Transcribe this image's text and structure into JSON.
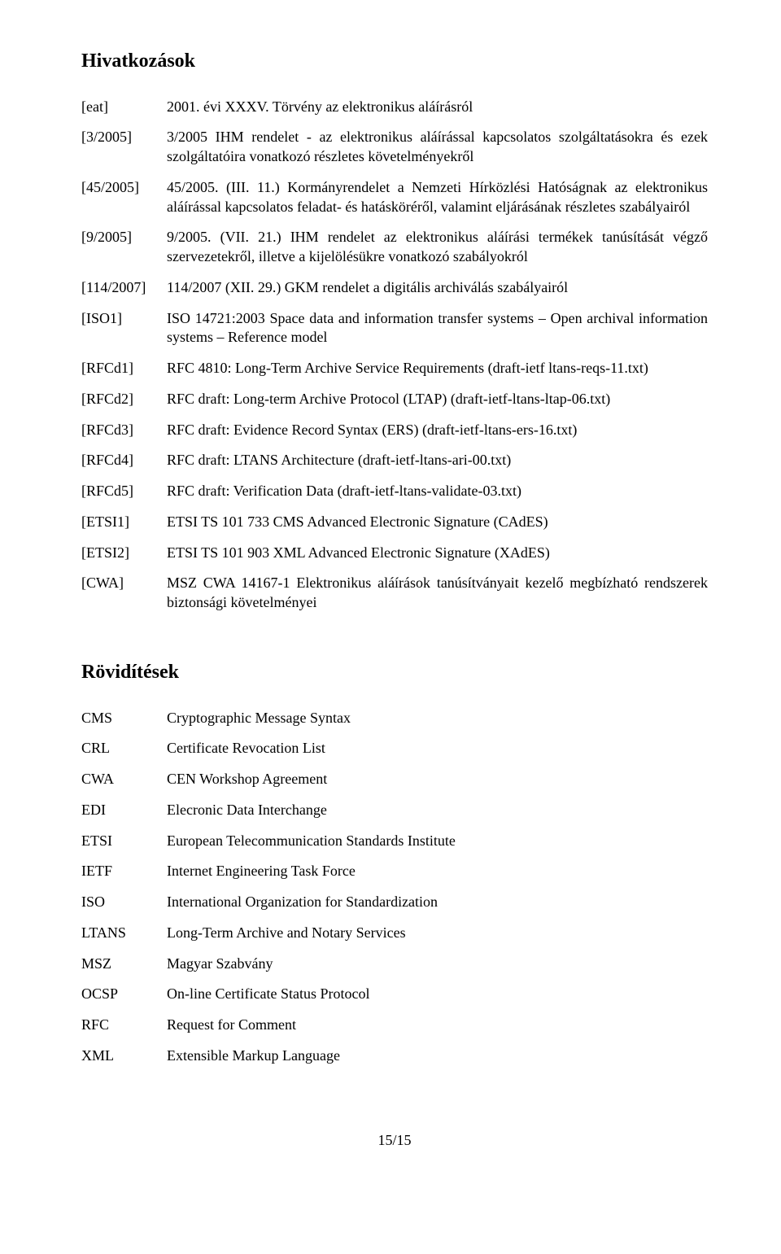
{
  "headings": {
    "references": "Hivatkozások",
    "abbreviations": "Rövidítések"
  },
  "references": [
    {
      "key": "[eat]",
      "val": "2001. évi XXXV. Törvény az elektronikus aláírásról"
    },
    {
      "key": "[3/2005]",
      "val": "3/2005 IHM rendelet - az elektronikus aláírással kapcsolatos szolgáltatásokra és ezek szolgáltatóira vonatkozó részletes követelményekről"
    },
    {
      "key": "[45/2005]",
      "val": "45/2005. (III. 11.) Kormányrendelet a Nemzeti Hírközlési Hatóságnak az elektronikus aláírással kapcsolatos feladat- és hatásköréről, valamint eljárásának részletes szabályairól"
    },
    {
      "key": "[9/2005]",
      "val": "9/2005. (VII. 21.) IHM rendelet az elektronikus aláírási termékek tanúsítását végző szervezetekről, illetve a kijelölésükre vonatkozó szabályokról"
    },
    {
      "key": "[114/2007]",
      "val": "114/2007 (XII. 29.) GKM rendelet a digitális archiválás szabályairól"
    },
    {
      "key": "[ISO1]",
      "val": "ISO 14721:2003 Space data and information transfer systems – Open archival information systems – Reference model"
    },
    {
      "key": "[RFCd1]",
      "val": "RFC 4810: Long-Term Archive Service Requirements (draft-ietf ltans-reqs-11.txt)"
    },
    {
      "key": "[RFCd2]",
      "val": "RFC draft: Long-term Archive Protocol (LTAP) (draft-ietf-ltans-ltap-06.txt)"
    },
    {
      "key": "[RFCd3]",
      "val": "RFC draft: Evidence Record Syntax (ERS) (draft-ietf-ltans-ers-16.txt)"
    },
    {
      "key": "[RFCd4]",
      "val": "RFC draft: LTANS Architecture (draft-ietf-ltans-ari-00.txt)"
    },
    {
      "key": "[RFCd5]",
      "val": "RFC draft: Verification Data (draft-ietf-ltans-validate-03.txt)"
    },
    {
      "key": "[ETSI1]",
      "val": "ETSI TS 101 733  CMS Advanced Electronic Signature (CAdES)"
    },
    {
      "key": "[ETSI2]",
      "val": "ETSI TS 101 903  XML Advanced Electronic Signature (XAdES)"
    },
    {
      "key": "[CWA]",
      "val": "MSZ CWA 14167-1 Elektronikus aláírások tanúsítványait kezelő megbízható rendszerek biztonsági követelményei"
    }
  ],
  "abbreviations": [
    {
      "key": "CMS",
      "val": "Cryptographic Message Syntax"
    },
    {
      "key": "CRL",
      "val": "Certificate Revocation List"
    },
    {
      "key": "CWA",
      "val": "CEN Workshop Agreement"
    },
    {
      "key": "EDI",
      "val": "Elecronic Data Interchange"
    },
    {
      "key": "ETSI",
      "val": "European Telecommunication Standards Institute"
    },
    {
      "key": "IETF",
      "val": "Internet Engineering Task Force"
    },
    {
      "key": "ISO",
      "val": "International Organization for Standardization"
    },
    {
      "key": "LTANS",
      "val": "Long-Term Archive and Notary Services"
    },
    {
      "key": "MSZ",
      "val": "Magyar Szabvány"
    },
    {
      "key": "OCSP",
      "val": "On-line Certificate Status Protocol"
    },
    {
      "key": "RFC",
      "val": "Request for Comment"
    },
    {
      "key": "XML",
      "val": "Extensible Markup Language"
    }
  ],
  "page_number": "15/15"
}
